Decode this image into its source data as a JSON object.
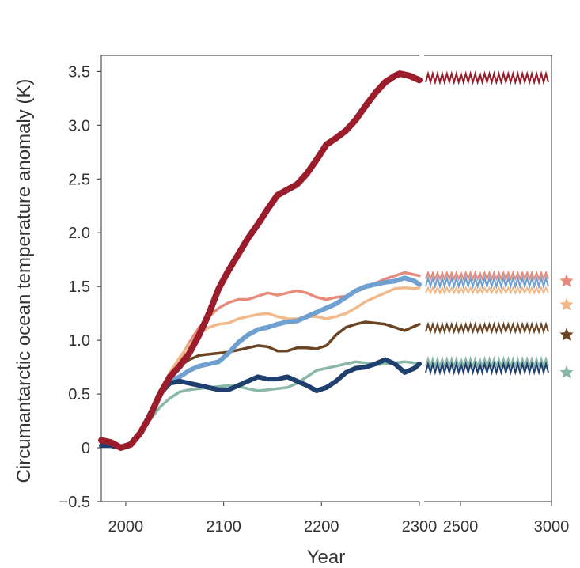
{
  "chart_data": {
    "type": "line",
    "title": "",
    "xlabel": "Year",
    "ylabel": "Circumantarctic ocean temperature anomaly (K)",
    "grid": false,
    "legend": "none",
    "panels": [
      {
        "name": "transient",
        "xlim": [
          1975,
          2300
        ],
        "xticks": [
          2000,
          2100,
          2200,
          2300
        ]
      },
      {
        "name": "equilibrium",
        "xlim": [
          2300,
          3000
        ],
        "xticks": [
          2500,
          3000
        ]
      }
    ],
    "ylim": [
      -0.5,
      3.65
    ],
    "yticks": [
      -0.5,
      0,
      0.5,
      1.0,
      1.5,
      2.0,
      2.5,
      3.0,
      3.5
    ],
    "ytick_labels": [
      "−0.5",
      "0",
      "0.5",
      "1.0",
      "1.5",
      "2.0",
      "2.5",
      "3.0",
      "3.5"
    ],
    "xtick_labels": [
      "2000",
      "2100",
      "2200",
      "2300",
      "2500",
      "3000"
    ],
    "series": [
      {
        "color": "#e88a7a",
        "width": 3.5,
        "x": [
          1975,
          1985,
          1995,
          2005,
          2015,
          2025,
          2035,
          2045,
          2055,
          2065,
          2075,
          2085,
          2095,
          2105,
          2115,
          2125,
          2135,
          2145,
          2155,
          2165,
          2175,
          2185,
          2195,
          2205,
          2215,
          2225,
          2235,
          2245,
          2255,
          2265,
          2275,
          2285,
          2295,
          2300
        ],
        "y": [
          0.02,
          0.02,
          0.0,
          0.02,
          0.12,
          0.28,
          0.48,
          0.66,
          0.82,
          0.98,
          1.12,
          1.22,
          1.3,
          1.35,
          1.38,
          1.38,
          1.41,
          1.44,
          1.42,
          1.44,
          1.46,
          1.44,
          1.4,
          1.38,
          1.4,
          1.41,
          1.45,
          1.5,
          1.53,
          1.57,
          1.6,
          1.63,
          1.61,
          1.6
        ],
        "equilibrium": {
          "low": 1.57,
          "high": 1.63
        },
        "marker": 1.55
      },
      {
        "color": "#f1b98a",
        "width": 3.5,
        "x": [
          1975,
          1985,
          1995,
          2005,
          2015,
          2025,
          2035,
          2045,
          2055,
          2065,
          2075,
          2085,
          2095,
          2105,
          2115,
          2125,
          2135,
          2145,
          2155,
          2165,
          2175,
          2185,
          2195,
          2205,
          2215,
          2225,
          2235,
          2245,
          2255,
          2265,
          2275,
          2285,
          2295,
          2300
        ],
        "y": [
          0.02,
          0.02,
          0.0,
          0.03,
          0.14,
          0.32,
          0.52,
          0.7,
          0.84,
          0.96,
          1.06,
          1.12,
          1.15,
          1.16,
          1.2,
          1.22,
          1.24,
          1.25,
          1.22,
          1.2,
          1.2,
          1.22,
          1.22,
          1.2,
          1.22,
          1.25,
          1.3,
          1.36,
          1.4,
          1.44,
          1.48,
          1.49,
          1.48,
          1.49
        ],
        "equilibrium": {
          "low": 1.44,
          "high": 1.49
        },
        "marker": 1.33
      },
      {
        "color": "#6b4423",
        "width": 3.5,
        "x": [
          1975,
          1985,
          1995,
          2005,
          2015,
          2025,
          2035,
          2045,
          2055,
          2065,
          2075,
          2085,
          2095,
          2105,
          2115,
          2125,
          2135,
          2145,
          2155,
          2165,
          2175,
          2185,
          2195,
          2205,
          2215,
          2225,
          2235,
          2245,
          2255,
          2265,
          2275,
          2285,
          2295,
          2300
        ],
        "y": [
          0.02,
          0.02,
          0.0,
          0.03,
          0.14,
          0.32,
          0.52,
          0.68,
          0.76,
          0.82,
          0.86,
          0.87,
          0.88,
          0.89,
          0.91,
          0.93,
          0.95,
          0.94,
          0.9,
          0.9,
          0.93,
          0.93,
          0.92,
          0.95,
          1.05,
          1.12,
          1.15,
          1.17,
          1.16,
          1.15,
          1.12,
          1.09,
          1.13,
          1.15
        ],
        "equilibrium": {
          "low": 1.08,
          "high": 1.15
        },
        "marker": 1.05
      },
      {
        "color": "#8ab8a8",
        "width": 3.5,
        "x": [
          1975,
          1985,
          1995,
          2005,
          2015,
          2025,
          2035,
          2045,
          2055,
          2065,
          2075,
          2085,
          2095,
          2105,
          2115,
          2125,
          2135,
          2145,
          2155,
          2165,
          2175,
          2185,
          2195,
          2205,
          2215,
          2225,
          2235,
          2245,
          2255,
          2265,
          2275,
          2285,
          2295,
          2300
        ],
        "y": [
          0.02,
          0.02,
          0.0,
          0.03,
          0.12,
          0.26,
          0.38,
          0.46,
          0.52,
          0.54,
          0.55,
          0.56,
          0.57,
          0.58,
          0.57,
          0.55,
          0.53,
          0.54,
          0.55,
          0.56,
          0.6,
          0.66,
          0.72,
          0.74,
          0.76,
          0.78,
          0.8,
          0.79,
          0.77,
          0.78,
          0.79,
          0.8,
          0.79,
          0.78
        ],
        "equilibrium": {
          "low": 0.76,
          "high": 0.83
        },
        "marker": 0.7
      },
      {
        "color": "#6fa0d0",
        "width": 6,
        "x": [
          1975,
          1985,
          1995,
          2005,
          2015,
          2025,
          2035,
          2045,
          2055,
          2065,
          2075,
          2085,
          2095,
          2105,
          2115,
          2125,
          2135,
          2145,
          2155,
          2165,
          2175,
          2185,
          2195,
          2205,
          2215,
          2225,
          2235,
          2245,
          2255,
          2265,
          2275,
          2285,
          2295,
          2300
        ],
        "y": [
          0.02,
          0.02,
          0.0,
          0.03,
          0.14,
          0.32,
          0.5,
          0.62,
          0.66,
          0.72,
          0.76,
          0.78,
          0.8,
          0.88,
          0.98,
          1.05,
          1.1,
          1.12,
          1.15,
          1.17,
          1.18,
          1.22,
          1.26,
          1.3,
          1.34,
          1.4,
          1.46,
          1.5,
          1.52,
          1.54,
          1.55,
          1.58,
          1.55,
          1.52
        ],
        "equilibrium": {
          "low": 1.5,
          "high": 1.58
        },
        "marker": null
      },
      {
        "color": "#1f3f6e",
        "width": 6,
        "x": [
          1975,
          1985,
          1995,
          2005,
          2015,
          2025,
          2035,
          2045,
          2055,
          2065,
          2075,
          2085,
          2095,
          2105,
          2115,
          2125,
          2135,
          2145,
          2155,
          2165,
          2175,
          2185,
          2195,
          2205,
          2215,
          2225,
          2235,
          2245,
          2255,
          2265,
          2275,
          2285,
          2295,
          2300
        ],
        "y": [
          0.02,
          0.02,
          0.0,
          0.03,
          0.14,
          0.32,
          0.5,
          0.6,
          0.62,
          0.6,
          0.58,
          0.56,
          0.54,
          0.54,
          0.58,
          0.62,
          0.66,
          0.64,
          0.64,
          0.66,
          0.62,
          0.58,
          0.53,
          0.56,
          0.62,
          0.7,
          0.74,
          0.75,
          0.78,
          0.82,
          0.78,
          0.7,
          0.74,
          0.78
        ],
        "equilibrium": {
          "low": 0.7,
          "high": 0.78
        },
        "marker": null
      },
      {
        "color": "#9b1c2a",
        "width": 8,
        "x": [
          1975,
          1985,
          1995,
          2005,
          2015,
          2025,
          2035,
          2045,
          2055,
          2065,
          2075,
          2085,
          2095,
          2105,
          2115,
          2125,
          2135,
          2145,
          2155,
          2165,
          2175,
          2185,
          2195,
          2205,
          2215,
          2225,
          2235,
          2245,
          2255,
          2265,
          2275,
          2280,
          2290,
          2300
        ],
        "y": [
          0.07,
          0.05,
          0.0,
          0.03,
          0.14,
          0.3,
          0.5,
          0.66,
          0.76,
          0.88,
          1.05,
          1.25,
          1.48,
          1.65,
          1.8,
          1.95,
          2.08,
          2.22,
          2.35,
          2.4,
          2.45,
          2.55,
          2.68,
          2.82,
          2.88,
          2.95,
          3.05,
          3.18,
          3.3,
          3.4,
          3.46,
          3.48,
          3.46,
          3.42
        ],
        "equilibrium": {
          "low": 3.4,
          "high": 3.48
        },
        "marker": null
      }
    ]
  }
}
